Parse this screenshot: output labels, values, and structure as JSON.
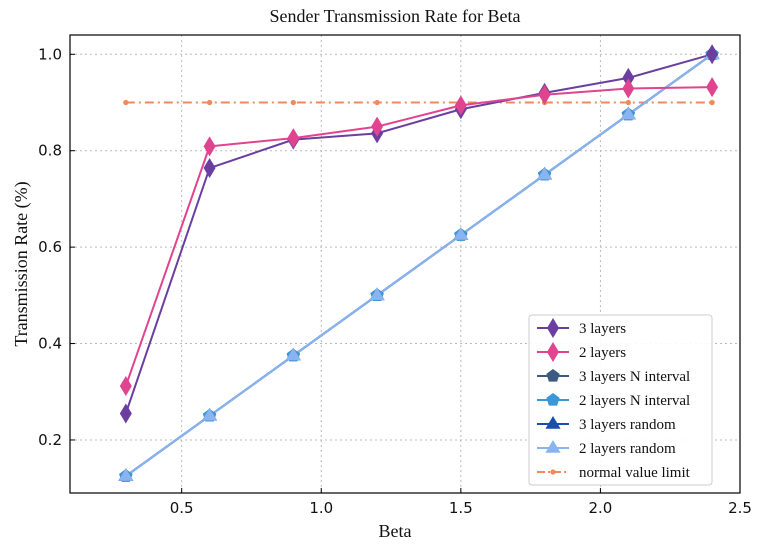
{
  "chart_data": {
    "type": "line",
    "title": "Sender Transmission Rate for Beta",
    "xlabel": "Beta",
    "ylabel": "Transmission Rate (%)",
    "xlim": [
      0.1,
      2.5
    ],
    "ylim": [
      0.09,
      1.04
    ],
    "xticks": [
      0.5,
      1.0,
      1.5,
      2.0,
      2.5
    ],
    "xtick_labels": [
      "0.5",
      "1.0",
      "1.5",
      "2.0",
      "2.5"
    ],
    "yticks": [
      0.2,
      0.4,
      0.6,
      0.8,
      1.0
    ],
    "ytick_labels": [
      "0.2",
      "0.4",
      "0.6",
      "0.8",
      "1.0"
    ],
    "grid": true,
    "legend_position": "lower-right",
    "x": [
      0.3,
      0.6,
      0.9,
      1.2,
      1.5,
      1.8,
      2.1,
      2.4
    ],
    "series": [
      {
        "name": "3 layers",
        "values": [
          0.255,
          0.764,
          0.823,
          0.836,
          0.886,
          0.92,
          0.951,
          1.0
        ],
        "color": "#6b3fa0",
        "marker": "diamond",
        "dashed": false
      },
      {
        "name": "2 layers",
        "values": [
          0.312,
          0.809,
          0.826,
          0.85,
          0.894,
          0.916,
          0.929,
          0.932
        ],
        "color": "#e0448f",
        "marker": "diamond",
        "dashed": false
      },
      {
        "name": "3 layers N interval",
        "values": [
          0.125,
          0.25,
          0.375,
          0.5,
          0.625,
          0.75,
          0.875,
          1.0
        ],
        "color": "#3d5a80",
        "marker": "pentagon",
        "dashed": false
      },
      {
        "name": "2 layers N interval",
        "values": [
          0.125,
          0.25,
          0.375,
          0.5,
          0.625,
          0.75,
          0.875,
          1.0
        ],
        "color": "#3a98d8",
        "marker": "pentagon",
        "dashed": false
      },
      {
        "name": "3 layers random",
        "values": [
          0.125,
          0.25,
          0.375,
          0.5,
          0.625,
          0.75,
          0.875,
          1.0
        ],
        "color": "#1a4fa8",
        "marker": "triangle",
        "dashed": false
      },
      {
        "name": "2 layers random",
        "values": [
          0.125,
          0.25,
          0.375,
          0.5,
          0.625,
          0.75,
          0.875,
          1.0
        ],
        "color": "#8ab4f0",
        "marker": "triangle",
        "dashed": false
      },
      {
        "name": "normal value limit",
        "values": [
          0.9,
          0.9,
          0.9,
          0.9,
          0.9,
          0.9,
          0.9,
          0.9
        ],
        "color": "#f08a5d",
        "marker": "circle",
        "dashed": true
      }
    ]
  }
}
